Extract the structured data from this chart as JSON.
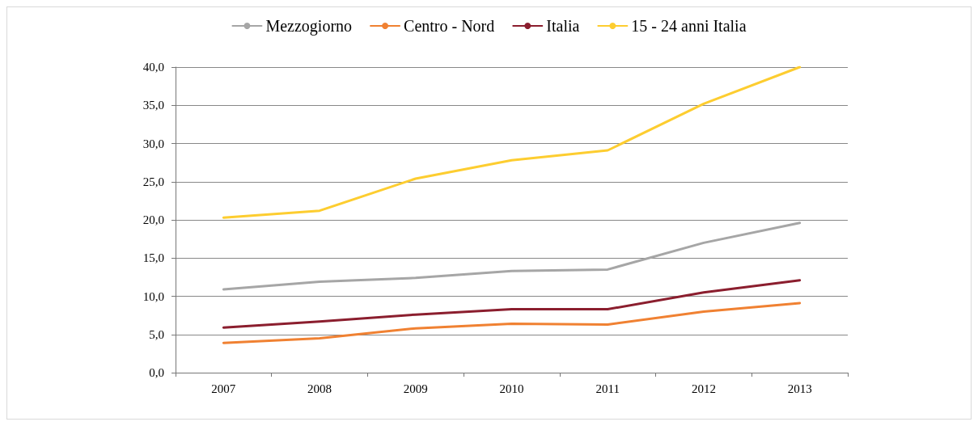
{
  "chart_data": {
    "type": "line",
    "categories": [
      "2007",
      "2008",
      "2009",
      "2010",
      "2011",
      "2012",
      "2013"
    ],
    "series": [
      {
        "name": "Mezzogiorno",
        "color": "#a6a6a6",
        "values": [
          10.9,
          11.9,
          12.4,
          13.3,
          13.5,
          17.0,
          19.6
        ]
      },
      {
        "name": "Centro - Nord",
        "color": "#f08132",
        "values": [
          3.9,
          4.5,
          5.8,
          6.4,
          6.3,
          8.0,
          9.1
        ]
      },
      {
        "name": "Italia",
        "color": "#8b1e2e",
        "values": [
          5.9,
          6.7,
          7.6,
          8.3,
          8.3,
          10.5,
          12.1
        ]
      },
      {
        "name": "15 - 24 anni Italia",
        "color": "#fdcd30",
        "values": [
          20.3,
          21.2,
          25.4,
          27.8,
          29.1,
          35.2,
          40.0
        ]
      }
    ],
    "ylim": [
      0,
      40
    ],
    "yticks": [
      {
        "value": 0,
        "label": "0,0"
      },
      {
        "value": 5,
        "label": "5,0"
      },
      {
        "value": 10,
        "label": "10,0"
      },
      {
        "value": 15,
        "label": "15,0"
      },
      {
        "value": 20,
        "label": "20,0"
      },
      {
        "value": 25,
        "label": "25,0"
      },
      {
        "value": 30,
        "label": "30,0"
      },
      {
        "value": 35,
        "label": "35,0"
      },
      {
        "value": 40,
        "label": "40,0"
      }
    ],
    "grid": "y",
    "legend": "top"
  }
}
